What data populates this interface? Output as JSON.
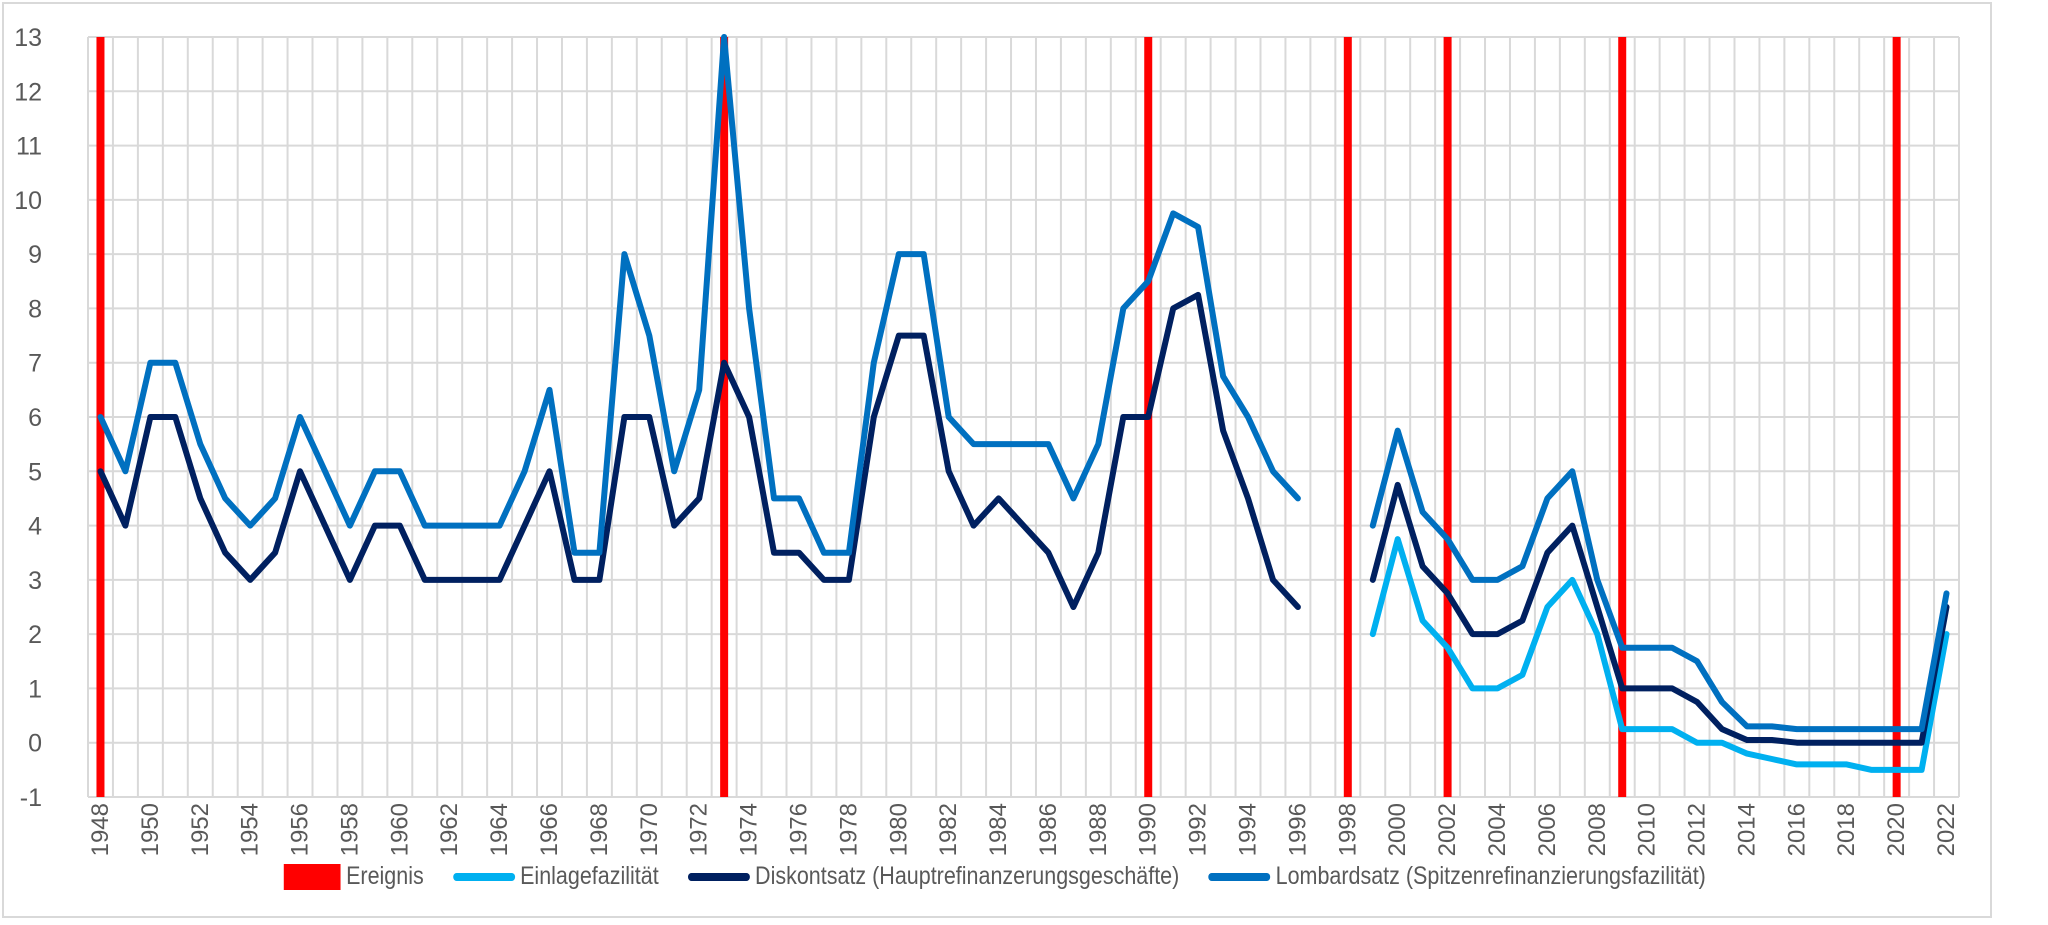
{
  "chart_data": {
    "type": "line",
    "title": "",
    "xlabel": "",
    "ylabel": "",
    "ylim": [
      -1,
      13
    ],
    "yticks": [
      -1,
      0,
      1,
      2,
      3,
      4,
      5,
      6,
      7,
      8,
      9,
      10,
      11,
      12,
      13
    ],
    "grid": true,
    "legend_position": "bottom",
    "x": [
      1948,
      1949,
      1950,
      1951,
      1952,
      1953,
      1954,
      1955,
      1956,
      1957,
      1958,
      1959,
      1960,
      1961,
      1962,
      1963,
      1964,
      1965,
      1966,
      1967,
      1968,
      1969,
      1970,
      1971,
      1972,
      1973,
      1974,
      1975,
      1976,
      1977,
      1978,
      1979,
      1980,
      1981,
      1982,
      1983,
      1984,
      1985,
      1986,
      1987,
      1988,
      1989,
      1990,
      1991,
      1992,
      1993,
      1994,
      1995,
      1996,
      1997,
      1998,
      1999,
      2000,
      2001,
      2002,
      2003,
      2004,
      2005,
      2006,
      2007,
      2008,
      2009,
      2010,
      2011,
      2012,
      2013,
      2014,
      2015,
      2016,
      2017,
      2018,
      2019,
      2020,
      2021,
      2022
    ],
    "xtick_labels": [
      "1948",
      "1950",
      "1952",
      "1954",
      "1956",
      "1958",
      "1960",
      "1962",
      "1964",
      "1966",
      "1968",
      "1970",
      "1972",
      "1974",
      "1976",
      "1978",
      "1980",
      "1982",
      "1984",
      "1986",
      "1988",
      "1990",
      "1992",
      "1994",
      "1996",
      "1998",
      "2000",
      "2002",
      "2004",
      "2006",
      "2008",
      "2010",
      "2012",
      "2014",
      "2016",
      "2018",
      "2020",
      "2022"
    ],
    "events": {
      "name": "Ereignis",
      "color": "#FF0000",
      "years": [
        1948,
        1973,
        1990,
        1998,
        2002,
        2009,
        2020
      ]
    },
    "series": [
      {
        "name": "Einlagefazilität",
        "color": "#00B0F0",
        "values": [
          null,
          null,
          null,
          null,
          null,
          null,
          null,
          null,
          null,
          null,
          null,
          null,
          null,
          null,
          null,
          null,
          null,
          null,
          null,
          null,
          null,
          null,
          null,
          null,
          null,
          null,
          null,
          null,
          null,
          null,
          null,
          null,
          null,
          null,
          null,
          null,
          null,
          null,
          null,
          null,
          null,
          null,
          null,
          null,
          null,
          null,
          null,
          null,
          null,
          null,
          null,
          2,
          3.75,
          2.25,
          1.75,
          1,
          1,
          1.25,
          2.5,
          3,
          2,
          0.25,
          0.25,
          0.25,
          0,
          0,
          -0.2,
          -0.3,
          -0.4,
          -0.4,
          -0.4,
          -0.5,
          -0.5,
          -0.5,
          2
        ]
      },
      {
        "name": "Diskontsatz (Hauptrefinanzerungsgeschäfte)",
        "color": "#002060",
        "values": [
          5,
          4,
          6,
          6,
          4.5,
          3.5,
          3,
          3.5,
          5,
          4,
          3,
          4,
          4,
          3,
          3,
          3,
          3,
          4,
          5,
          3,
          3,
          6,
          6,
          4,
          4.5,
          7,
          6,
          3.5,
          3.5,
          3,
          3,
          6,
          7.5,
          7.5,
          5,
          4,
          4.5,
          4,
          3.5,
          2.5,
          3.5,
          6,
          6,
          8,
          8.25,
          5.75,
          4.5,
          3,
          2.5,
          null,
          null,
          3,
          4.75,
          3.25,
          2.75,
          2,
          2,
          2.25,
          3.5,
          4,
          2.5,
          1,
          1,
          1,
          0.75,
          0.25,
          0.05,
          0.05,
          0,
          0,
          0,
          0,
          0,
          0,
          2.5
        ]
      },
      {
        "name": "Lombardsatz (Spitzenrefinanzierungsfazilität)",
        "color": "#0070C0",
        "values": [
          6,
          5,
          7,
          7,
          5.5,
          4.5,
          4,
          4.5,
          6,
          5,
          4,
          5,
          5,
          4,
          4,
          4,
          4,
          5,
          6.5,
          3.5,
          3.5,
          9,
          7.5,
          5,
          6.5,
          13,
          8,
          4.5,
          4.5,
          3.5,
          3.5,
          7,
          9,
          9,
          6,
          5.5,
          5.5,
          5.5,
          5.5,
          4.5,
          5.5,
          8,
          8.5,
          9.75,
          9.5,
          6.75,
          6,
          5,
          4.5,
          null,
          null,
          4,
          5.75,
          4.25,
          3.75,
          3,
          3,
          3.25,
          4.5,
          5,
          3,
          1.75,
          1.75,
          1.75,
          1.5,
          0.75,
          0.3,
          0.3,
          0.25,
          0.25,
          0.25,
          0.25,
          0.25,
          0.25,
          2.75
        ]
      }
    ]
  }
}
